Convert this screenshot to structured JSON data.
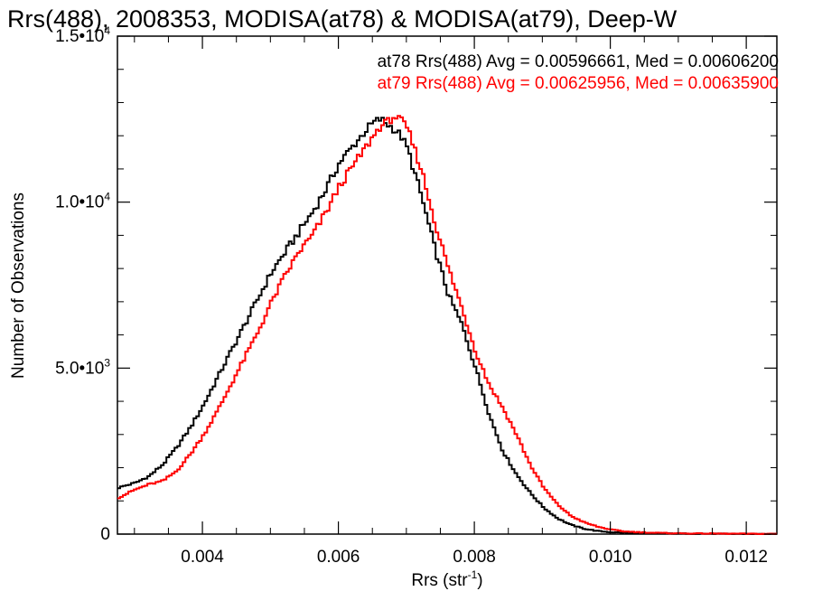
{
  "chart_data": {
    "type": "line",
    "title": "Rrs(488), 2008353, MODISA(at78) & MODISA(at79), Deep-W",
    "xlabel": "Rrs (str",
    "xlabel_sup": "-1",
    "xlabel_close": ")",
    "ylabel": "Number of Observations",
    "xlim": [
      0.00275,
      0.01245
    ],
    "ylim": [
      0,
      15000
    ],
    "x_ticks": [
      {
        "value": 0.004,
        "label": "0.004"
      },
      {
        "value": 0.006,
        "label": "0.006"
      },
      {
        "value": 0.008,
        "label": "0.008"
      },
      {
        "value": 0.01,
        "label": "0.010"
      },
      {
        "value": 0.012,
        "label": "0.012"
      }
    ],
    "y_ticks": [
      {
        "value": 0,
        "mant": "0",
        "exp": ""
      },
      {
        "value": 5000,
        "mant": "5.0•10",
        "exp": "3"
      },
      {
        "value": 10000,
        "mant": "1.0•10",
        "exp": "4"
      },
      {
        "value": 15000,
        "mant": "1.5•10",
        "exp": "4"
      }
    ],
    "grid": false,
    "series": [
      {
        "name": "at78",
        "color": "#000000",
        "annotation": "at78 Rrs(488) Avg = 0.00596661, Med = 0.00606200",
        "x": [
          0.00275,
          0.003,
          0.0032,
          0.0034,
          0.0036,
          0.0038,
          0.004,
          0.0042,
          0.0044,
          0.0046,
          0.0048,
          0.005,
          0.0052,
          0.0054,
          0.0056,
          0.0058,
          0.006,
          0.0062,
          0.0064,
          0.0065,
          0.0066,
          0.0067,
          0.0068,
          0.0069,
          0.007,
          0.0072,
          0.0074,
          0.0076,
          0.0078,
          0.008,
          0.0082,
          0.0084,
          0.0086,
          0.0088,
          0.009,
          0.0092,
          0.0094,
          0.0096,
          0.0098,
          0.01,
          0.0102,
          0.0104,
          0.0106,
          0.0108,
          0.011,
          0.0115,
          0.012,
          0.01245
        ],
        "y": [
          1400,
          1550,
          1750,
          2100,
          2600,
          3200,
          3900,
          4700,
          5500,
          6300,
          7100,
          7900,
          8500,
          9100,
          9700,
          10400,
          11200,
          11700,
          12200,
          12400,
          12500,
          12350,
          12200,
          12000,
          11600,
          10200,
          8600,
          7200,
          6300,
          5000,
          3600,
          2500,
          1800,
          1250,
          800,
          480,
          280,
          160,
          90,
          55,
          40,
          30,
          25,
          20,
          15,
          10,
          5,
          0
        ]
      },
      {
        "name": "at79",
        "color": "#ff0000",
        "annotation": "at79 Rrs(488) Avg = 0.00625956, Med = 0.00635900",
        "x": [
          0.00275,
          0.003,
          0.0032,
          0.0034,
          0.0036,
          0.0038,
          0.004,
          0.0042,
          0.0044,
          0.0046,
          0.0048,
          0.005,
          0.0052,
          0.0054,
          0.0056,
          0.0058,
          0.006,
          0.0062,
          0.0064,
          0.0066,
          0.0067,
          0.0068,
          0.0069,
          0.007,
          0.0072,
          0.0074,
          0.0076,
          0.0078,
          0.008,
          0.0082,
          0.0084,
          0.0086,
          0.0088,
          0.009,
          0.0092,
          0.0094,
          0.0096,
          0.0098,
          0.01,
          0.0102,
          0.0104,
          0.0106,
          0.0108,
          0.011,
          0.0115,
          0.012,
          0.01245
        ],
        "y": [
          1100,
          1350,
          1500,
          1600,
          1900,
          2400,
          3000,
          3700,
          4500,
          5300,
          6100,
          7000,
          7800,
          8500,
          9000,
          9700,
          10500,
          11100,
          11700,
          12300,
          12400,
          12600,
          12450,
          12200,
          11000,
          9400,
          8000,
          6800,
          5500,
          4500,
          3800,
          3000,
          2100,
          1400,
          900,
          550,
          350,
          220,
          130,
          80,
          55,
          40,
          30,
          22,
          15,
          10,
          5
        ]
      }
    ]
  }
}
